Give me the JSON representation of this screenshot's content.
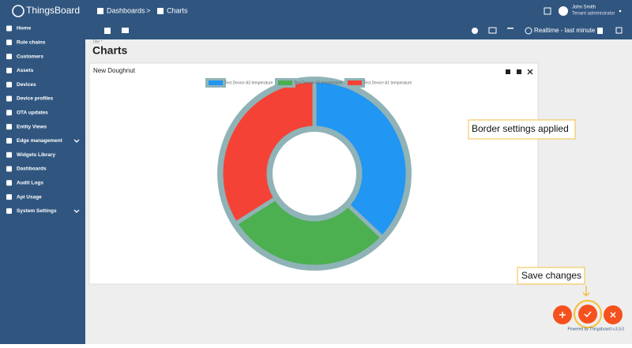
{
  "header": {
    "logo": "ThingsBoard",
    "breadcrumb": [
      "Dashboards",
      "Charts"
    ],
    "separator": ">",
    "user_name": "John Smith",
    "user_role": "Tenant administrator"
  },
  "toolbar": {
    "timewindow": "Realtime - last minute"
  },
  "sidebar": {
    "items": [
      "Home",
      "Rule chains",
      "Customers",
      "Assets",
      "Devices",
      "Device profiles",
      "OTA updates",
      "Entity Views",
      "Edge management",
      "Widgets Library",
      "Dashboards",
      "Audit Logs",
      "Api Usage",
      "System Settings"
    ]
  },
  "dashboard": {
    "title_label": "Title *",
    "title": "Charts"
  },
  "chart_data": {
    "type": "doughnut",
    "title": "New Doughnut",
    "categories": [
      "Test Device A3 temperature",
      "Test Device A2 temperature",
      "Test Device A1 temperature"
    ],
    "values": [
      37,
      29,
      34
    ],
    "colors": [
      "#2196f3",
      "#4caf50",
      "#f44336"
    ],
    "border_color": "#8fb3b6"
  },
  "callouts": [
    "Border settings applied",
    "Save changes"
  ],
  "footer": {
    "powered_by": "Powered by Thingsboard v.3.3.0"
  }
}
